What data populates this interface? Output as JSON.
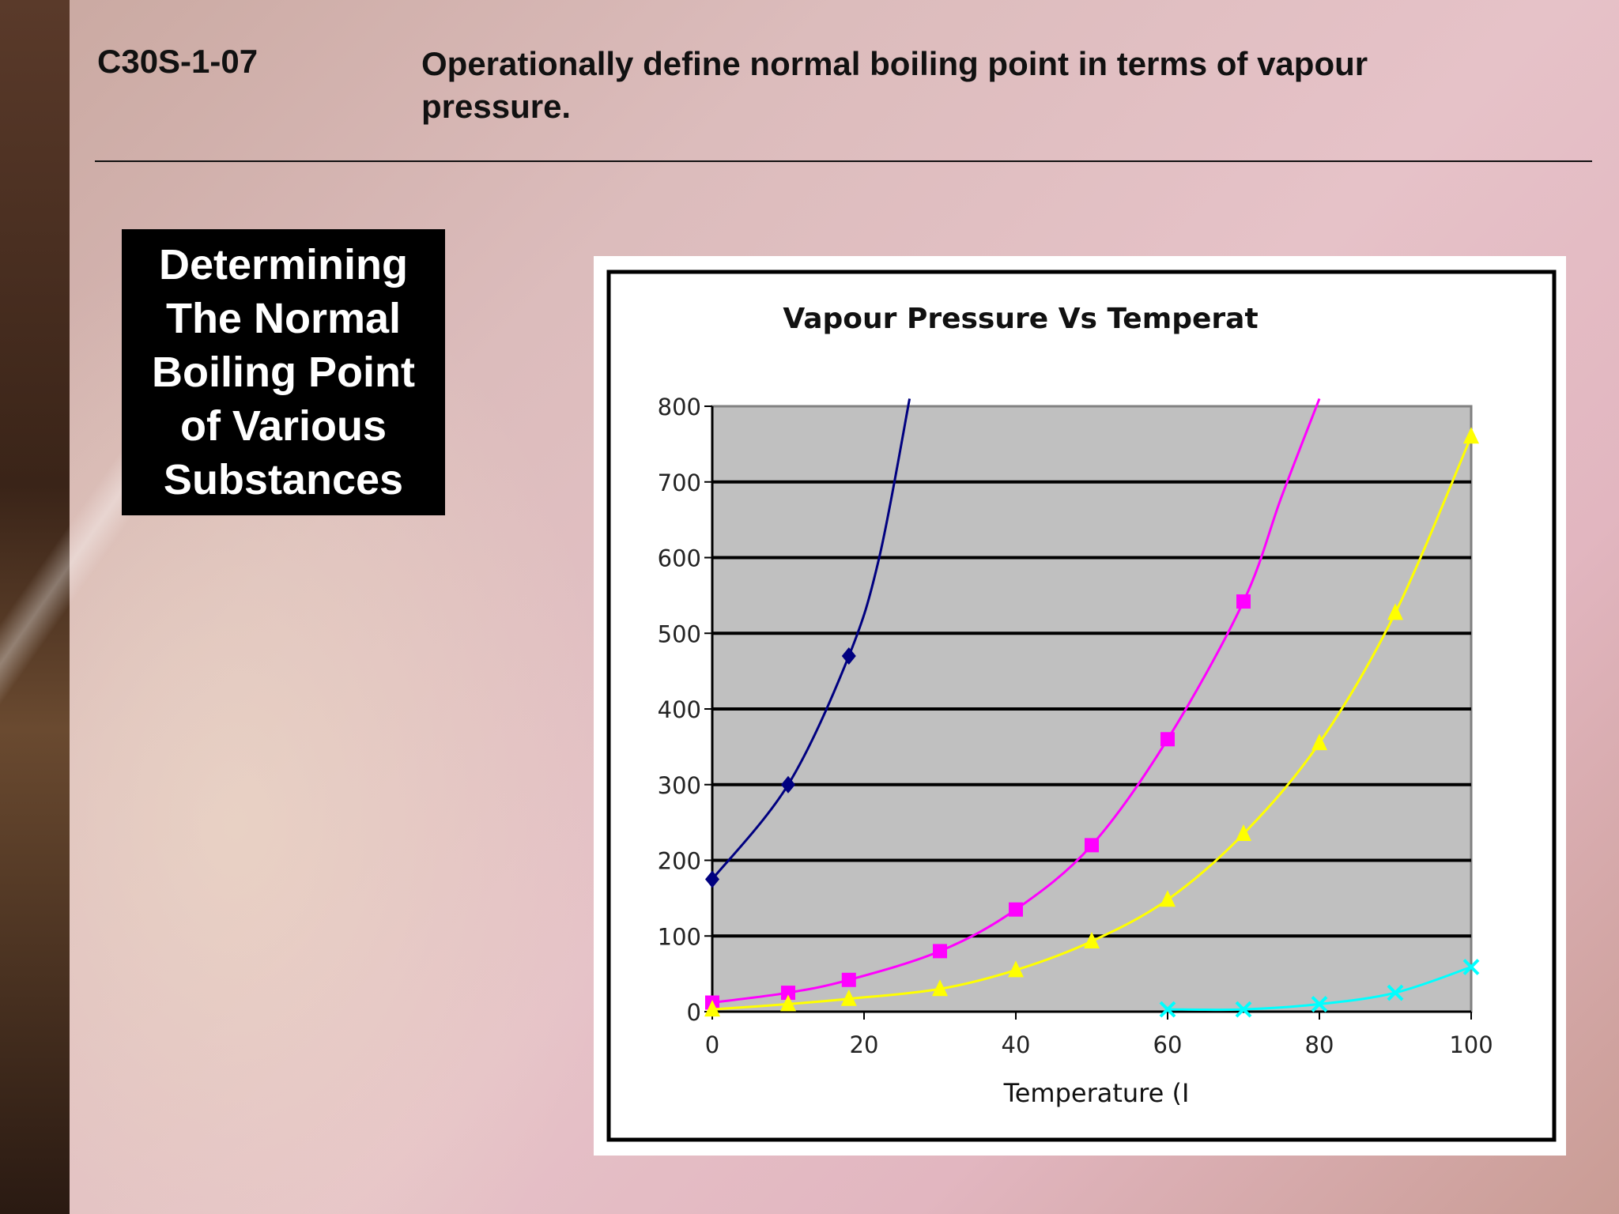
{
  "header": {
    "code": "C30S-1-07",
    "objective": "Operationally define normal boiling point in terms of vapour pressure."
  },
  "title_box": {
    "text": "Determining\nThe Normal\nBoiling Point\nof Various\nSubstances"
  },
  "chart_data": {
    "type": "line",
    "title": "Vapour Pressure Vs Temperat",
    "xlabel": "Temperature (I",
    "ylabel": "",
    "xlim": [
      0,
      100
    ],
    "ylim": [
      0,
      800
    ],
    "x_ticks": [
      0,
      20,
      40,
      60,
      80,
      100
    ],
    "y_ticks": [
      0,
      100,
      200,
      300,
      400,
      500,
      600,
      700,
      800
    ],
    "grid": "horizontal",
    "plot_background": "#c0c0c0",
    "series": [
      {
        "color": "#000080",
        "marker": "diamond",
        "points": [
          [
            0,
            175
          ],
          [
            10,
            300
          ],
          [
            18,
            470
          ]
        ],
        "curve_extends_to": [
          [
            22,
            600
          ],
          [
            26,
            810
          ]
        ]
      },
      {
        "color": "#ff00ff",
        "marker": "square",
        "points": [
          [
            0,
            12
          ],
          [
            10,
            25
          ],
          [
            18,
            42
          ],
          [
            30,
            80
          ],
          [
            40,
            135
          ],
          [
            50,
            220
          ],
          [
            60,
            360
          ],
          [
            70,
            542
          ]
        ],
        "curve_extends_to": [
          [
            75,
            680
          ],
          [
            80,
            810
          ]
        ]
      },
      {
        "color": "#ffff00",
        "marker": "triangle",
        "points": [
          [
            0,
            3
          ],
          [
            10,
            10
          ],
          [
            18,
            17
          ],
          [
            30,
            30
          ],
          [
            40,
            55
          ],
          [
            50,
            93
          ],
          [
            60,
            148
          ],
          [
            70,
            235
          ],
          [
            80,
            355
          ],
          [
            90,
            527
          ],
          [
            100,
            760
          ]
        ]
      },
      {
        "color": "#00ffff",
        "marker": "x",
        "points": [
          [
            60,
            3
          ],
          [
            70,
            3
          ],
          [
            80,
            10
          ],
          [
            90,
            25
          ],
          [
            100,
            59
          ]
        ]
      }
    ]
  }
}
